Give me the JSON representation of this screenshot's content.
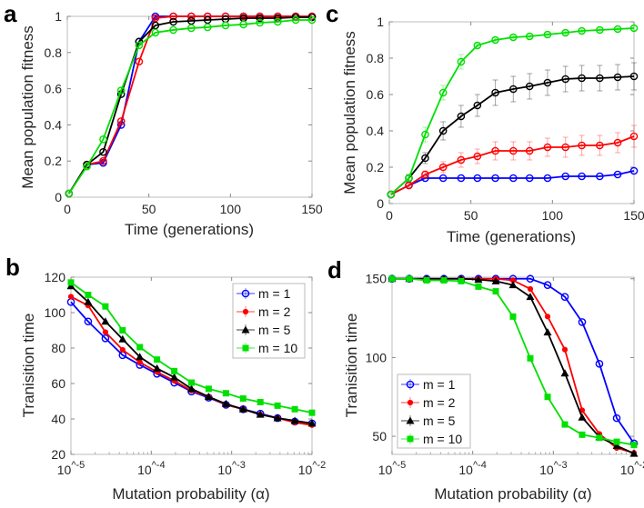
{
  "colors": {
    "m1": "#0000ff",
    "m2": "#ff0000",
    "m5": "#000000",
    "m10": "#00e000",
    "axis": "#bcbcbc"
  },
  "chart_data": [
    {
      "panel": "a",
      "type": "line",
      "xlabel": "Time (generations)",
      "ylabel": "Mean population fitness",
      "xscale": "linear",
      "xlim": [
        0,
        150
      ],
      "ylim": [
        0,
        1
      ],
      "xticks": [
        0,
        50,
        100,
        150
      ],
      "xtick_labels": [
        "0",
        "50",
        "100",
        "150"
      ],
      "yticks": [
        0,
        0.2,
        0.4,
        0.6,
        0.8,
        1
      ],
      "ytick_labels": [
        "0",
        "0.2",
        "0.4",
        "0.6",
        "0.8",
        "1"
      ],
      "legend": null,
      "x": [
        1,
        12,
        22,
        33,
        44,
        54,
        65,
        76,
        86,
        97,
        108,
        118,
        129,
        140,
        150
      ],
      "series": [
        {
          "name": "m = 1",
          "color": "#0000ff",
          "marker": "circle",
          "values": [
            0.02,
            0.18,
            0.19,
            0.4,
            0.86,
            1.0,
            1.0,
            1.0,
            1.0,
            1.0,
            1.0,
            1.0,
            1.0,
            1.0,
            1.0
          ]
        },
        {
          "name": "m = 2",
          "color": "#ff0000",
          "marker": "circle",
          "values": [
            0.02,
            0.18,
            0.2,
            0.42,
            0.75,
            0.99,
            1.0,
            1.0,
            1.0,
            1.0,
            1.0,
            1.0,
            1.0,
            1.0,
            1.0
          ]
        },
        {
          "name": "m = 5",
          "color": "#000000",
          "marker": "circle",
          "values": [
            0.02,
            0.18,
            0.25,
            0.57,
            0.86,
            0.95,
            0.97,
            0.975,
            0.98,
            0.985,
            0.99,
            0.99,
            0.99,
            0.995,
            0.995
          ]
        },
        {
          "name": "m = 10",
          "color": "#00e000",
          "marker": "circle",
          "values": [
            0.02,
            0.17,
            0.32,
            0.59,
            0.84,
            0.91,
            0.925,
            0.935,
            0.94,
            0.95,
            0.955,
            0.965,
            0.97,
            0.98,
            0.98
          ]
        }
      ]
    },
    {
      "panel": "b",
      "type": "line",
      "xlabel": "Mutation probability (α)",
      "ylabel": "Tranisition time",
      "xscale": "log",
      "xlim": [
        -5,
        -2
      ],
      "ylim": [
        20,
        120
      ],
      "xticks": [
        -5,
        -4,
        -3,
        -2
      ],
      "xtick_labels": [
        "10^-5",
        "10^-4",
        "10^-3",
        "10^-2"
      ],
      "yticks": [
        20,
        40,
        60,
        80,
        100,
        120
      ],
      "ytick_labels": [
        "20",
        "40",
        "60",
        "80",
        "100",
        "120"
      ],
      "legend": "top-right",
      "x_log10": [
        -5,
        -4.786,
        -4.571,
        -4.357,
        -4.143,
        -3.929,
        -3.714,
        -3.5,
        -3.286,
        -3.071,
        -2.857,
        -2.643,
        -2.429,
        -2.214,
        -2
      ],
      "series": [
        {
          "name": "m = 1",
          "color": "#0000ff",
          "marker": "circle",
          "values": [
            106,
            95,
            85.5,
            76,
            70.5,
            65.5,
            60.5,
            55.5,
            52,
            48,
            45.5,
            43,
            40.5,
            38.5,
            37.5
          ]
        },
        {
          "name": "m = 2",
          "color": "#ff0000",
          "marker": "dot",
          "values": [
            109,
            104,
            89,
            79,
            72,
            66.5,
            61.5,
            56,
            52.5,
            48,
            45.5,
            42.5,
            40.5,
            38,
            36.5
          ]
        },
        {
          "name": "m = 5",
          "color": "#000000",
          "marker": "triangle",
          "values": [
            115,
            106,
            95,
            85,
            75,
            68.5,
            63.5,
            57,
            52.5,
            48.5,
            45.5,
            42.5,
            40.5,
            39,
            37.5
          ]
        },
        {
          "name": "m = 10",
          "color": "#00e000",
          "marker": "square",
          "values": [
            117,
            110,
            103.5,
            90,
            80.5,
            73.5,
            67,
            60.5,
            57,
            54.5,
            51.5,
            49.5,
            47.5,
            45.5,
            43.5
          ]
        }
      ]
    },
    {
      "panel": "c",
      "type": "line",
      "xlabel": "Time (generations)",
      "ylabel": "Mean population fitness",
      "xscale": "linear",
      "xlim": [
        0,
        150
      ],
      "ylim": [
        0,
        1
      ],
      "xticks": [
        0,
        50,
        100,
        150
      ],
      "xtick_labels": [
        "0",
        "50",
        "100",
        "150"
      ],
      "yticks": [
        0,
        0.2,
        0.4,
        0.6,
        0.8,
        1
      ],
      "ytick_labels": [
        "0",
        "0.2",
        "0.4",
        "0.6",
        "0.8",
        "1"
      ],
      "legend": null,
      "x": [
        1,
        12,
        22,
        33,
        44,
        54,
        65,
        76,
        86,
        97,
        108,
        118,
        129,
        140,
        150
      ],
      "series": [
        {
          "name": "m = 1",
          "color": "#0000ff",
          "marker": "circle",
          "values": [
            0.05,
            0.1,
            0.14,
            0.14,
            0.14,
            0.14,
            0.14,
            0.14,
            0.14,
            0.14,
            0.15,
            0.15,
            0.15,
            0.16,
            0.18
          ]
        },
        {
          "name": "m = 2",
          "color": "#ff0000",
          "marker": "circle",
          "values": [
            0.05,
            0.1,
            0.16,
            0.2,
            0.24,
            0.26,
            0.29,
            0.29,
            0.29,
            0.31,
            0.31,
            0.32,
            0.32,
            0.335,
            0.37
          ],
          "errors": [
            0,
            0.01,
            0.02,
            0.03,
            0.04,
            0.04,
            0.05,
            0.05,
            0.05,
            0.05,
            0.055,
            0.055,
            0.055,
            0.055,
            0.06
          ]
        },
        {
          "name": "m = 5",
          "color": "#000000",
          "marker": "circle",
          "values": [
            0.05,
            0.14,
            0.25,
            0.4,
            0.48,
            0.54,
            0.61,
            0.63,
            0.645,
            0.665,
            0.685,
            0.69,
            0.69,
            0.695,
            0.7
          ],
          "errors": [
            0,
            0.02,
            0.03,
            0.05,
            0.06,
            0.06,
            0.07,
            0.07,
            0.07,
            0.07,
            0.07,
            0.07,
            0.07,
            0.07,
            0.075
          ]
        },
        {
          "name": "m = 10",
          "color": "#00e000",
          "marker": "circle",
          "values": [
            0.05,
            0.14,
            0.38,
            0.61,
            0.78,
            0.87,
            0.9,
            0.915,
            0.92,
            0.93,
            0.94,
            0.95,
            0.955,
            0.96,
            0.965
          ],
          "errors": [
            0,
            0.01,
            0.04,
            0.04,
            0.04,
            0.01,
            0.01,
            0.01,
            0.01,
            0.01,
            0.01,
            0.01,
            0.01,
            0.01,
            0.01
          ]
        }
      ]
    },
    {
      "panel": "d",
      "type": "line",
      "xlabel": "Mutation probability (α)",
      "ylabel": "Tranisition time",
      "xscale": "log",
      "xlim": [
        -5,
        -2
      ],
      "ylim": [
        38.5,
        151
      ],
      "xticks": [
        -5,
        -4,
        -3,
        -2
      ],
      "xtick_labels": [
        "10^-5",
        "10^-4",
        "10^-3",
        "10^-2"
      ],
      "yticks": [
        50,
        100,
        150
      ],
      "ytick_labels": [
        "50",
        "100",
        "150"
      ],
      "legend": "bottom-left",
      "x_log10": [
        -5,
        -4.786,
        -4.571,
        -4.357,
        -4.143,
        -3.929,
        -3.714,
        -3.5,
        -3.286,
        -3.071,
        -2.857,
        -2.643,
        -2.429,
        -2.214,
        -2
      ],
      "series": [
        {
          "name": "m = 1",
          "color": "#0000ff",
          "marker": "circle",
          "values": [
            150,
            150,
            150,
            150,
            150,
            150,
            150,
            150,
            150,
            146,
            138.5,
            122.5,
            96,
            61.5,
            45.5
          ]
        },
        {
          "name": "m = 2",
          "color": "#ff0000",
          "marker": "dot",
          "values": [
            150,
            150,
            150,
            150,
            150,
            150,
            150,
            149,
            143.5,
            126,
            105,
            66.5,
            51.5,
            42.5,
            39.5
          ]
        },
        {
          "name": "m = 5",
          "color": "#000000",
          "marker": "triangle",
          "values": [
            150,
            150,
            150,
            150,
            150,
            149.5,
            148.5,
            146,
            138.5,
            116,
            90,
            62,
            49.5,
            44,
            39
          ]
        },
        {
          "name": "m = 10",
          "color": "#00e000",
          "marker": "square",
          "values": [
            150,
            150,
            149,
            149,
            148.5,
            145,
            142,
            126,
            99.5,
            75,
            57.5,
            51,
            49,
            46.5,
            44.5
          ]
        }
      ]
    }
  ]
}
